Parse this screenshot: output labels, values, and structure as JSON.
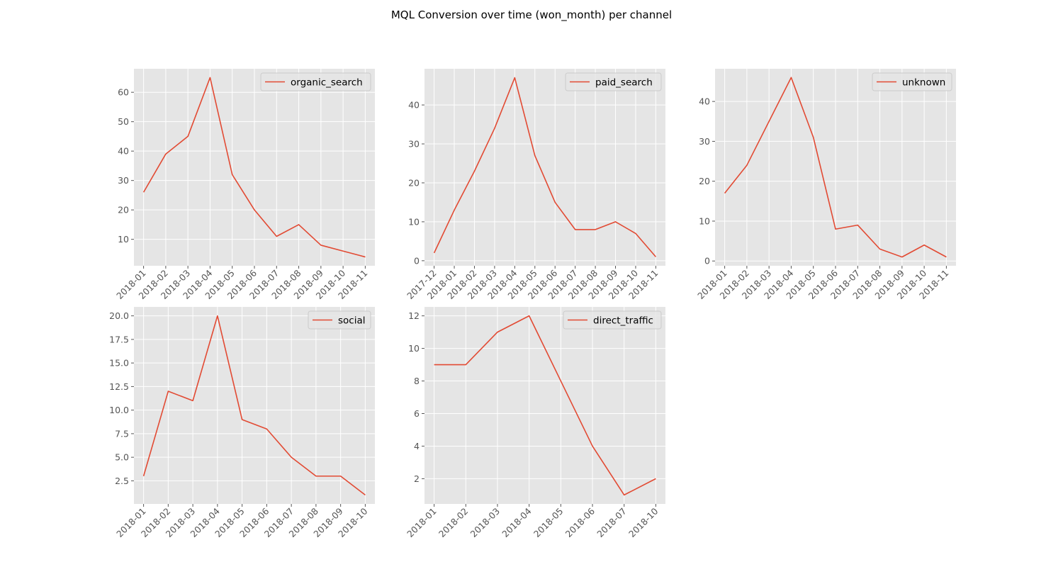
{
  "figure": {
    "title": "MQL Conversion over time (won_month) per channel"
  },
  "style": {
    "plot_background": "#e5e5e5",
    "grid_color": "#ffffff",
    "line_color": "#e24a33",
    "tick_label_color": "#555555",
    "legend_background": "#e5e5e5",
    "legend_border": "#cccccc"
  },
  "chart_data": [
    {
      "type": "line",
      "legend_position": "top-right",
      "grid": true,
      "categories": [
        "2018-01",
        "2018-02",
        "2018-03",
        "2018-04",
        "2018-05",
        "2018-06",
        "2018-07",
        "2018-08",
        "2018-09",
        "2018-10",
        "2018-11"
      ],
      "series": [
        {
          "name": "organic_search",
          "values": [
            26,
            39,
            45,
            65,
            32,
            20,
            11,
            15,
            8,
            6,
            4
          ]
        }
      ],
      "ylim": [
        1.0,
        68.0
      ],
      "yticks": [
        10,
        20,
        30,
        40,
        50,
        60
      ],
      "ytick_labels": [
        "10",
        "20",
        "30",
        "40",
        "50",
        "60"
      ]
    },
    {
      "type": "line",
      "legend_position": "top-right",
      "grid": true,
      "categories": [
        "2017-12",
        "2018-01",
        "2018-02",
        "2018-03",
        "2018-04",
        "2018-05",
        "2018-06",
        "2018-07",
        "2018-08",
        "2018-09",
        "2018-10",
        "2018-11"
      ],
      "series": [
        {
          "name": "paid_search",
          "values": [
            2,
            13,
            23,
            34,
            47,
            27,
            15,
            8,
            8,
            10,
            7,
            1
          ]
        }
      ],
      "ylim": [
        -1.3,
        49.3
      ],
      "yticks": [
        0,
        10,
        20,
        30,
        40
      ],
      "ytick_labels": [
        "0",
        "10",
        "20",
        "30",
        "40"
      ]
    },
    {
      "type": "line",
      "legend_position": "top-right",
      "grid": true,
      "categories": [
        "2018-01",
        "2018-02",
        "2018-03",
        "2018-04",
        "2018-05",
        "2018-06",
        "2018-07",
        "2018-08",
        "2018-09",
        "2018-10",
        "2018-11"
      ],
      "series": [
        {
          "name": "unknown",
          "values": [
            17,
            24,
            35,
            46,
            31,
            8,
            9,
            3,
            1,
            4,
            1
          ]
        }
      ],
      "ylim": [
        -1.2,
        48.2
      ],
      "yticks": [
        0,
        10,
        20,
        30,
        40
      ],
      "ytick_labels": [
        "0",
        "10",
        "20",
        "30",
        "40"
      ]
    },
    {
      "type": "line",
      "legend_position": "top-right",
      "grid": true,
      "categories": [
        "2018-01",
        "2018-02",
        "2018-03",
        "2018-04",
        "2018-05",
        "2018-06",
        "2018-07",
        "2018-08",
        "2018-09",
        "2018-10"
      ],
      "series": [
        {
          "name": "social",
          "values": [
            3,
            12,
            11,
            20,
            9,
            8,
            5,
            3,
            3,
            1
          ]
        }
      ],
      "ylim": [
        0.05,
        20.95
      ],
      "yticks": [
        2.5,
        5.0,
        7.5,
        10.0,
        12.5,
        15.0,
        17.5,
        20.0
      ],
      "ytick_labels": [
        "2.5",
        "5.0",
        "7.5",
        "10.0",
        "12.5",
        "15.0",
        "17.5",
        "20.0"
      ]
    },
    {
      "type": "line",
      "legend_position": "top-right",
      "grid": true,
      "categories": [
        "2018-01",
        "2018-02",
        "2018-03",
        "2018-04",
        "2018-05",
        "2018-06",
        "2018-07",
        "2018-10"
      ],
      "series": [
        {
          "name": "direct_traffic",
          "values": [
            9,
            9,
            11,
            12,
            8,
            4,
            1,
            2
          ]
        }
      ],
      "ylim": [
        0.45,
        12.55
      ],
      "yticks": [
        2,
        4,
        6,
        8,
        10,
        12
      ],
      "ytick_labels": [
        "2",
        "4",
        "6",
        "8",
        "10",
        "12"
      ]
    }
  ]
}
